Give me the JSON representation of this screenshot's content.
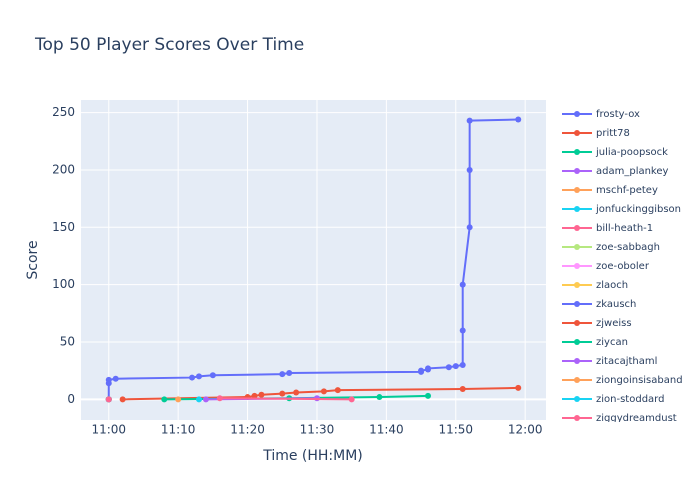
{
  "chart_data": {
    "type": "line",
    "title": "Top 50 Player Scores Over Time",
    "x_label": "Time (HH:MM)",
    "y_label": "Score",
    "xlim": [
      "10:56",
      "12:03"
    ],
    "xticks": [
      "11:00",
      "11:10",
      "11:20",
      "11:30",
      "11:40",
      "11:50",
      "12:00"
    ],
    "ylim": [
      -18,
      261
    ],
    "yticks": [
      0,
      50,
      100,
      150,
      200,
      250
    ],
    "grid": true,
    "legend": "right",
    "series": [
      {
        "name": "frosty-ox",
        "color": "#636efa",
        "x": [
          "11:00",
          "11:00",
          "11:00",
          "11:01",
          "11:12",
          "11:13",
          "11:15",
          "11:25",
          "11:26",
          "11:45",
          "11:45",
          "11:46",
          "11:46",
          "11:49",
          "11:50",
          "11:51",
          "11:51",
          "11:51",
          "11:52",
          "11:52",
          "11:52",
          "11:59"
        ],
        "values": [
          0,
          14,
          17,
          18,
          19,
          20,
          21,
          22,
          23,
          24,
          25,
          26,
          27,
          28,
          29,
          30,
          60,
          100,
          150,
          200,
          243,
          244
        ]
      },
      {
        "name": "pritt78",
        "color": "#ef553b",
        "x": [
          "11:02",
          "11:20",
          "11:21",
          "11:22",
          "11:25",
          "11:27",
          "11:31",
          "11:33",
          "11:51",
          "11:59"
        ],
        "values": [
          0,
          2,
          3,
          4,
          5,
          6,
          7,
          8,
          9,
          10
        ]
      },
      {
        "name": "julia-poopsock",
        "color": "#00cc96",
        "x": [
          "11:08",
          "11:26",
          "11:39",
          "11:46"
        ],
        "values": [
          0,
          1,
          2,
          3
        ]
      },
      {
        "name": "adam_plankey",
        "color": "#ab63fa",
        "x": [
          "11:14",
          "11:30"
        ],
        "values": [
          0,
          1
        ]
      },
      {
        "name": "mschf-petey",
        "color": "#ffa15a",
        "x": [
          "11:10"
        ],
        "values": [
          0
        ]
      },
      {
        "name": "jonfuckinggibson",
        "color": "#19d3f3",
        "x": [
          "11:13"
        ],
        "values": [
          0
        ]
      },
      {
        "name": "bill-heath-1",
        "color": "#ff6692",
        "x": [
          "11:16",
          "11:35"
        ],
        "values": [
          1,
          0
        ]
      },
      {
        "name": "zoe-sabbagh",
        "color": "#b6e880",
        "x": [
          "11:00"
        ],
        "values": [
          0
        ]
      },
      {
        "name": "zoe-oboler",
        "color": "#ff97ff",
        "x": [
          "11:00"
        ],
        "values": [
          0
        ]
      },
      {
        "name": "zlaoch",
        "color": "#fecb52",
        "x": [
          "11:00"
        ],
        "values": [
          0
        ]
      },
      {
        "name": "zkausch",
        "color": "#636efa",
        "x": [
          "11:00"
        ],
        "values": [
          0
        ]
      },
      {
        "name": "zjweiss",
        "color": "#ef553b",
        "x": [
          "11:00"
        ],
        "values": [
          0
        ]
      },
      {
        "name": "ziycan",
        "color": "#00cc96",
        "x": [
          "11:00"
        ],
        "values": [
          0
        ]
      },
      {
        "name": "zitacajthaml",
        "color": "#ab63fa",
        "x": [
          "11:00"
        ],
        "values": [
          0
        ]
      },
      {
        "name": "ziongoinsisaband",
        "color": "#ffa15a",
        "x": [
          "11:00"
        ],
        "values": [
          0
        ]
      },
      {
        "name": "zion-stoddard",
        "color": "#19d3f3",
        "x": [
          "11:00"
        ],
        "values": [
          0
        ]
      },
      {
        "name": "ziggydreamdust",
        "color": "#ff6692",
        "x": [
          "11:00"
        ],
        "values": [
          0
        ]
      }
    ]
  }
}
